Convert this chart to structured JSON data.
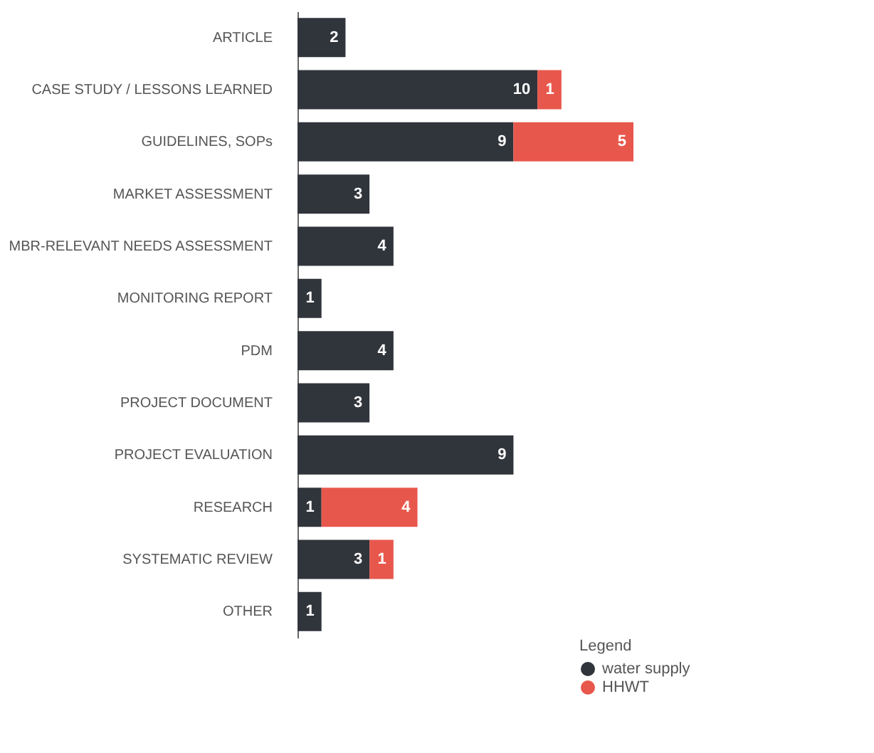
{
  "chart_data": {
    "type": "bar",
    "orientation": "horizontal",
    "stacked": true,
    "data_labels": true,
    "legend": "bottom right",
    "legend_title": "Legend",
    "categories": [
      "ARTICLE",
      "CASE STUDY / LESSONS LEARNED",
      "GUIDELINES, SOPs",
      "MARKET ASSESSMENT",
      "MBR-RELEVANT NEEDS ASSESSMENT",
      "MONITORING REPORT",
      "PDM",
      "PROJECT DOCUMENT",
      "PROJECT EVALUATION",
      "RESEARCH",
      "SYSTEMATIC REVIEW",
      "OTHER"
    ],
    "series": [
      {
        "name": "water supply",
        "color": "#30343b",
        "values": [
          2,
          10,
          9,
          3,
          4,
          1,
          4,
          3,
          9,
          1,
          3,
          1
        ]
      },
      {
        "name": "HHWT",
        "color": "#e8574c",
        "values": [
          null,
          1,
          5,
          null,
          null,
          null,
          null,
          null,
          null,
          4,
          1,
          null
        ]
      }
    ]
  }
}
